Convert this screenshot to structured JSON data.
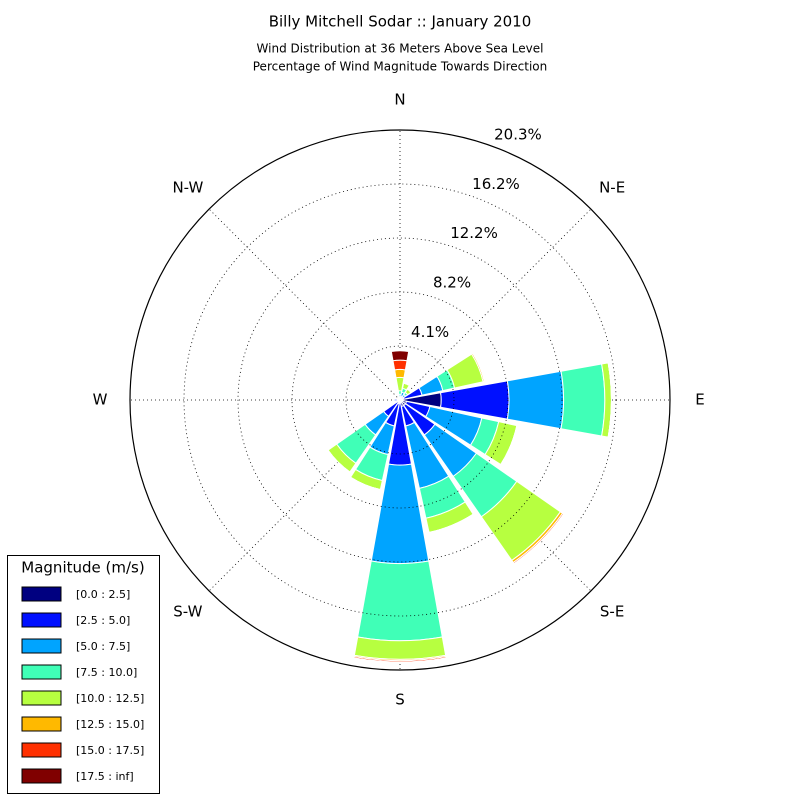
{
  "chart_data": {
    "type": "windrose",
    "title": "Billy Mitchell Sodar :: January 2010",
    "subtitle": [
      "Wind Distribution at 36 Meters Above Sea Level",
      "Percentage of Wind Magnitude Towards Direction"
    ],
    "categories": [
      "N",
      null,
      "N-E",
      null,
      "E",
      null,
      "S-E",
      null,
      "S",
      null,
      "S-W",
      null,
      "W",
      null,
      "N-W",
      null
    ],
    "ylim": [
      0,
      20.3
    ],
    "yticks": [
      {
        "value": 4.06,
        "label": "4.1%"
      },
      {
        "value": 8.12,
        "label": "8.2%"
      },
      {
        "value": 12.18,
        "label": "12.2%"
      },
      {
        "value": 16.24,
        "label": "16.2%"
      },
      {
        "value": 20.3,
        "label": "20.3%"
      }
    ],
    "grid": true,
    "legend_title": "Magnitude (m/s)",
    "legend": "lower left",
    "series": [
      {
        "name": "[0.0 : 2.5]",
        "color": "#000080",
        "values": [
          0.1,
          0.1,
          0.1,
          0.3,
          3.1,
          0.5,
          0.5,
          0.5,
          0.2,
          0.3,
          0.2,
          0.1,
          0.2,
          0.1,
          0.1,
          0.1
        ]
      },
      {
        "name": "[2.5 : 5.0]",
        "color": "#0010ff",
        "values": [
          0.1,
          0.2,
          0.2,
          1.4,
          5.1,
          1.8,
          2.7,
          1.5,
          4.7,
          1.7,
          1.3,
          0.1,
          0.2,
          0.1,
          0.1,
          0.1
        ]
      },
      {
        "name": "[5.0 : 7.5]",
        "color": "#00a4ff",
        "values": [
          0.2,
          0.3,
          0.2,
          1.6,
          4.1,
          4.0,
          3.8,
          4.8,
          7.4,
          2.2,
          1.7,
          0.1,
          0.1,
          0,
          0,
          0.1
        ]
      },
      {
        "name": "[7.5 : 10.0]",
        "color": "#40ffb7",
        "values": [
          0.3,
          0.3,
          0.2,
          0.9,
          3.1,
          1.3,
          3.7,
          2.3,
          5.8,
          2.0,
          2.6,
          0,
          0,
          0,
          0,
          0
        ]
      },
      {
        "name": "[10.0 : 12.5]",
        "color": "#b7ff40",
        "values": [
          1.0,
          0.4,
          0.3,
          2.2,
          0.5,
          1.4,
          4.0,
          1.1,
          1.4,
          0.7,
          0.8,
          0,
          0,
          0,
          0,
          0
        ]
      },
      {
        "name": "[12.5 : 15.0]",
        "color": "#ffb900",
        "values": [
          0.6,
          0,
          0,
          0.1,
          0,
          0,
          0.2,
          0,
          0.1,
          0,
          0,
          0,
          0,
          0,
          0,
          0
        ]
      },
      {
        "name": "[15.0 : 17.5]",
        "color": "#ff3000",
        "values": [
          0.7,
          0,
          0,
          0,
          0,
          0,
          0.1,
          0,
          0.1,
          0,
          0,
          0,
          0,
          0,
          0,
          0
        ]
      },
      {
        "name": "[17.5 : inf]",
        "color": "#800000",
        "values": [
          0.7,
          0,
          0,
          0,
          0,
          0,
          0,
          0,
          0,
          0,
          0,
          0,
          0,
          0,
          0,
          0
        ]
      }
    ]
  }
}
